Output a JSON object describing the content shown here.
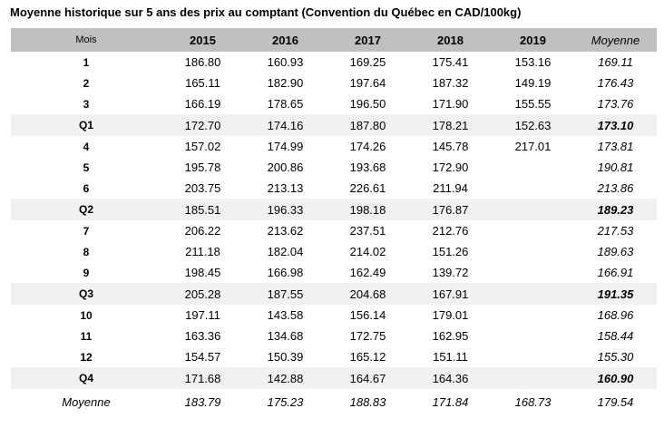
{
  "title": "Moyenne historique sur 5 ans des prix au comptant (Convention du Québec en CAD/100kg)",
  "colors": {
    "header_bg": "#c0c0c0",
    "quarter_row_bg": "#f1f1f1",
    "text": "#000000",
    "background": "#ffffff"
  },
  "table": {
    "columns": [
      "Mois",
      "2015",
      "2016",
      "2017",
      "2018",
      "2019",
      "Moyenne"
    ],
    "rows": [
      {
        "label": "1",
        "type": "month",
        "values": [
          "186.80",
          "160.93",
          "169.25",
          "175.41",
          "153.16"
        ],
        "moyenne": "169.11"
      },
      {
        "label": "2",
        "type": "month",
        "values": [
          "165.11",
          "182.90",
          "197.64",
          "187.32",
          "149.19"
        ],
        "moyenne": "176.43"
      },
      {
        "label": "3",
        "type": "month",
        "values": [
          "166.19",
          "178.65",
          "196.50",
          "171.90",
          "155.55"
        ],
        "moyenne": "173.76"
      },
      {
        "label": "Q1",
        "type": "quarter",
        "values": [
          "172.70",
          "174.16",
          "187.80",
          "178.21",
          "152.63"
        ],
        "moyenne": "173.10"
      },
      {
        "label": "4",
        "type": "month",
        "values": [
          "157.02",
          "174.99",
          "174.26",
          "145.78",
          "217.01"
        ],
        "moyenne": "173.81"
      },
      {
        "label": "5",
        "type": "month",
        "values": [
          "195.78",
          "200.86",
          "193.68",
          "172.90",
          ""
        ],
        "moyenne": "190.81"
      },
      {
        "label": "6",
        "type": "month",
        "values": [
          "203.75",
          "213.13",
          "226.61",
          "211.94",
          ""
        ],
        "moyenne": "213.86"
      },
      {
        "label": "Q2",
        "type": "quarter",
        "values": [
          "185.51",
          "196.33",
          "198.18",
          "176.87",
          ""
        ],
        "moyenne": "189.23"
      },
      {
        "label": "7",
        "type": "month",
        "values": [
          "206.22",
          "213.62",
          "237.51",
          "212.76",
          ""
        ],
        "moyenne": "217.53"
      },
      {
        "label": "8",
        "type": "month",
        "values": [
          "211.18",
          "182.04",
          "214.02",
          "151.26",
          ""
        ],
        "moyenne": "189.63"
      },
      {
        "label": "9",
        "type": "month",
        "values": [
          "198.45",
          "166.98",
          "162.49",
          "139.72",
          ""
        ],
        "moyenne": "166.91"
      },
      {
        "label": "Q3",
        "type": "quarter",
        "values": [
          "205.28",
          "187.55",
          "204.68",
          "167.91",
          ""
        ],
        "moyenne": "191.35"
      },
      {
        "label": "10",
        "type": "month",
        "values": [
          "197.11",
          "143.58",
          "156.14",
          "179.01",
          ""
        ],
        "moyenne": "168.96"
      },
      {
        "label": "11",
        "type": "month",
        "values": [
          "163.36",
          "134.68",
          "172.75",
          "162.95",
          ""
        ],
        "moyenne": "158.44"
      },
      {
        "label": "12",
        "type": "month",
        "values": [
          "154.57",
          "150.39",
          "165.12",
          "151.11",
          ""
        ],
        "moyenne": "155.30"
      },
      {
        "label": "Q4",
        "type": "quarter",
        "values": [
          "171.68",
          "142.88",
          "164.67",
          "164.36",
          ""
        ],
        "moyenne": "160.90"
      },
      {
        "label": "Moyenne",
        "type": "summary",
        "values": [
          "183.79",
          "175.23",
          "188.83",
          "171.84",
          "168.73"
        ],
        "moyenne": "179.54"
      }
    ]
  }
}
